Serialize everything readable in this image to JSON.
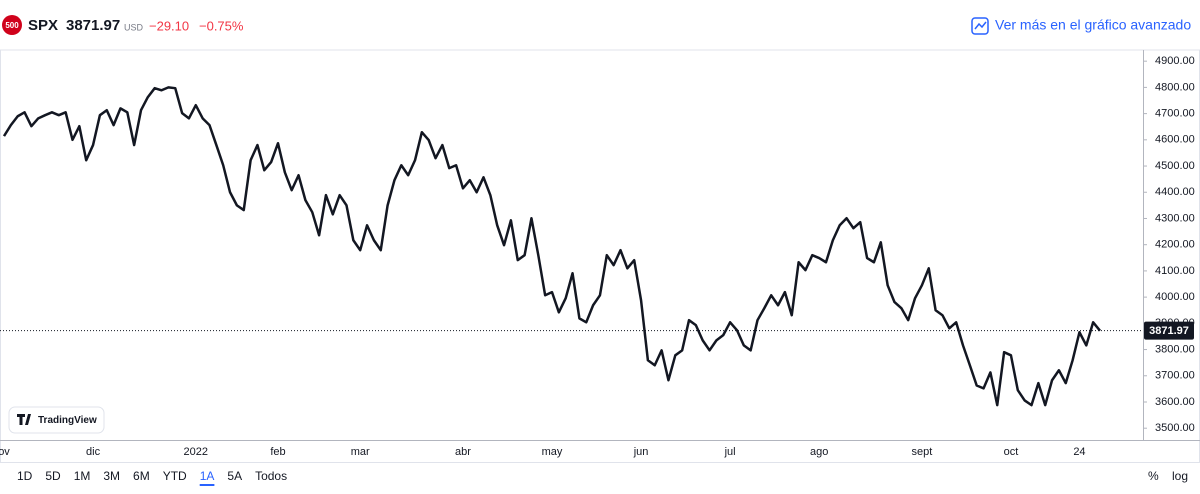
{
  "header": {
    "logo": "500",
    "symbol": "SPX",
    "price": "3871.97",
    "currency": "USD",
    "change": "−29.10",
    "change_percent": "−0.75%",
    "link": "Ver más en el gráfico avanzado"
  },
  "chart_data": {
    "type": "line",
    "color": "#131722",
    "categories": [
      "ov",
      null,
      null,
      null,
      null,
      null,
      null,
      null,
      null,
      null,
      null,
      null,
      null,
      "dic",
      null,
      null,
      null,
      null,
      null,
      null,
      null,
      null,
      null,
      null,
      null,
      null,
      null,
      null,
      "2022",
      null,
      null,
      null,
      null,
      null,
      null,
      null,
      null,
      null,
      null,
      null,
      "feb",
      null,
      null,
      null,
      null,
      null,
      null,
      null,
      null,
      null,
      null,
      null,
      "mar",
      null,
      null,
      null,
      null,
      null,
      null,
      null,
      null,
      null,
      null,
      null,
      null,
      null,
      null,
      "abr",
      null,
      null,
      null,
      null,
      null,
      null,
      null,
      null,
      null,
      null,
      null,
      null,
      "may",
      null,
      null,
      null,
      null,
      null,
      null,
      null,
      null,
      null,
      null,
      null,
      null,
      "jun",
      null,
      null,
      null,
      null,
      null,
      null,
      null,
      null,
      null,
      null,
      null,
      null,
      "jul",
      null,
      null,
      null,
      null,
      null,
      null,
      null,
      null,
      null,
      null,
      null,
      null,
      "ago",
      null,
      null,
      null,
      null,
      null,
      null,
      null,
      null,
      null,
      null,
      null,
      null,
      null,
      null,
      "sept",
      null,
      null,
      null,
      null,
      null,
      null,
      null,
      null,
      null,
      null,
      null,
      null,
      "oct",
      null,
      null,
      null,
      null,
      null,
      null,
      null,
      null,
      null,
      "24",
      null,
      null,
      null
    ],
    "values": [
      4614,
      4656,
      4690,
      4705,
      4652,
      4682,
      4694,
      4705,
      4694,
      4705,
      4600,
      4652,
      4522,
      4580,
      4694,
      4713,
      4656,
      4720,
      4705,
      4580,
      4713,
      4763,
      4797,
      4789,
      4800,
      4797,
      4702,
      4682,
      4732,
      4682,
      4656,
      4580,
      4503,
      4400,
      4350,
      4332,
      4522,
      4580,
      4484,
      4515,
      4587,
      4476,
      4408,
      4465,
      4370,
      4324,
      4236,
      4389,
      4316,
      4389,
      4350,
      4217,
      4179,
      4274,
      4217,
      4179,
      4350,
      4446,
      4503,
      4465,
      4522,
      4629,
      4599,
      4530,
      4580,
      4492,
      4503,
      4415,
      4446,
      4400,
      4457,
      4389,
      4274,
      4198,
      4293,
      4141,
      4160,
      4301,
      4160,
      4007,
      4019,
      3942,
      3996,
      4091,
      3919,
      3904,
      3969,
      4007,
      4160,
      4122,
      4179,
      4110,
      4141,
      3988,
      3759,
      3740,
      3797,
      3683,
      3778,
      3797,
      3912,
      3893,
      3835,
      3797,
      3835,
      3855,
      3904,
      3874,
      3816,
      3797,
      3912,
      3958,
      4007,
      3969,
      4019,
      3931,
      4133,
      4103,
      4160,
      4149,
      4133,
      4217,
      4274,
      4301,
      4263,
      4286,
      4149,
      4133,
      4209,
      4045,
      3981,
      3958,
      3912,
      3996,
      4045,
      4110,
      3950,
      3931,
      3881,
      3904,
      3816,
      3740,
      3663,
      3652,
      3713,
      3588,
      3790,
      3778,
      3645,
      3606,
      3588,
      3672,
      3588,
      3683,
      3721,
      3672,
      3759,
      3866,
      3816,
      3904,
      3871.97
    ],
    "ylim": [
      3455,
      4935
    ],
    "yticks": [
      {
        "value": 3500,
        "label": "3500.00"
      },
      {
        "value": 3600,
        "label": "3600.00"
      },
      {
        "value": 3700,
        "label": "3700.00"
      },
      {
        "value": 3800,
        "label": "3800.00"
      },
      {
        "value": 3900,
        "label": "3900.00"
      },
      {
        "value": 4000,
        "label": "4000.00"
      },
      {
        "value": 4100,
        "label": "4100.00"
      },
      {
        "value": 4200,
        "label": "4200.00"
      },
      {
        "value": 4300,
        "label": "4300.00"
      },
      {
        "value": 4400,
        "label": "4400.00"
      },
      {
        "value": 4500,
        "label": "4500.00"
      },
      {
        "value": 4600,
        "label": "4600.00"
      },
      {
        "value": 4700,
        "label": "4700.00"
      },
      {
        "value": 4800,
        "label": "4800.00"
      },
      {
        "value": 4900,
        "label": "4900.00"
      }
    ],
    "last_price": 3871.97,
    "watermark": "TradingView",
    "grid": false
  },
  "toolbar": {
    "ranges": [
      "1D",
      "5D",
      "1M",
      "3M",
      "6M",
      "YTD",
      "1A",
      "5A",
      "Todos"
    ],
    "selected": "1A",
    "options": [
      "%",
      "log"
    ]
  }
}
